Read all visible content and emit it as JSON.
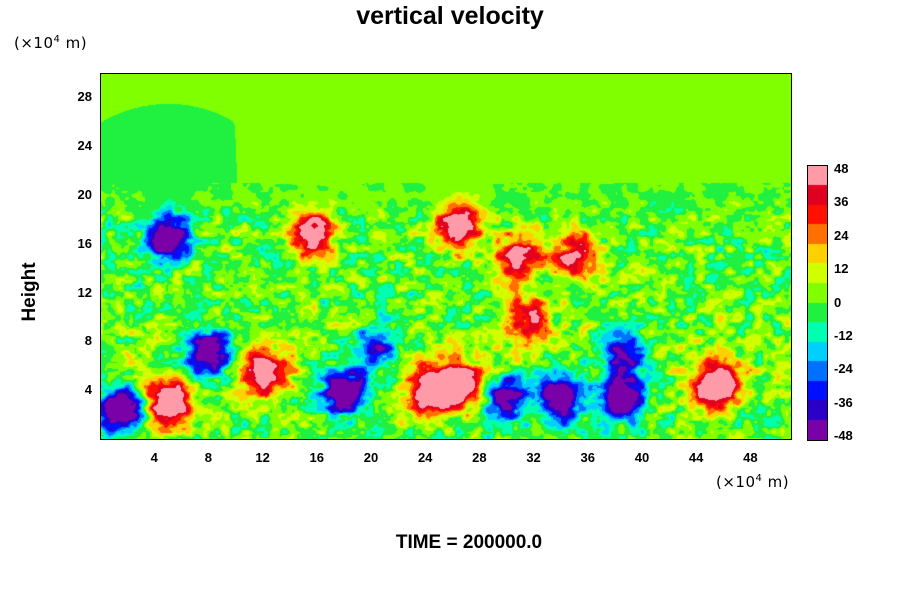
{
  "chart_data": {
    "type": "heatmap",
    "title": "vertical velocity",
    "ylabel": "Height",
    "x_unit": {
      "prefix": "(×10",
      "exp": "4",
      "suffix": " m)"
    },
    "y_unit": {
      "prefix": "(×10",
      "exp": "4",
      "suffix": " m)"
    },
    "x_ticks": [
      "4",
      "8",
      "12",
      "16",
      "20",
      "24",
      "28",
      "32",
      "36",
      "40",
      "44",
      "48"
    ],
    "y_ticks": [
      "4",
      "8",
      "12",
      "16",
      "20",
      "24",
      "28"
    ],
    "xlim": [
      0,
      51
    ],
    "ylim": [
      0,
      30
    ],
    "colorbar": {
      "ticks": [
        "48",
        "36",
        "24",
        "12",
        "0",
        "-12",
        "-24",
        "-36",
        "-48"
      ],
      "range": [
        -48,
        48
      ],
      "colors": [
        "#7a00a8",
        "#2a00c8",
        "#0010ff",
        "#0070ff",
        "#00d0ff",
        "#00ffb0",
        "#20f040",
        "#80ff00",
        "#d0ff00",
        "#ffd000",
        "#ff7000",
        "#ff1000",
        "#e00020",
        "#ff9aa8"
      ]
    },
    "features": [
      {
        "x": 1.5,
        "y": 2.5,
        "w": -48
      },
      {
        "x": 5.0,
        "y": 3.0,
        "w": 46
      },
      {
        "x": 8.0,
        "y": 7.0,
        "w": -44
      },
      {
        "x": 12.0,
        "y": 5.5,
        "w": 40
      },
      {
        "x": 18.0,
        "y": 4.0,
        "w": -48
      },
      {
        "x": 20.5,
        "y": 7.5,
        "w": -30
      },
      {
        "x": 24.5,
        "y": 4.0,
        "w": 48
      },
      {
        "x": 26.5,
        "y": 4.5,
        "w": 46
      },
      {
        "x": 30.0,
        "y": 3.5,
        "w": -38
      },
      {
        "x": 34.0,
        "y": 3.5,
        "w": -48
      },
      {
        "x": 38.5,
        "y": 3.5,
        "w": -48
      },
      {
        "x": 38.5,
        "y": 7.0,
        "w": -34
      },
      {
        "x": 45.5,
        "y": 4.5,
        "w": 48
      },
      {
        "x": 5.0,
        "y": 16.5,
        "w": -44
      },
      {
        "x": 15.5,
        "y": 17.0,
        "w": 40
      },
      {
        "x": 26.5,
        "y": 17.5,
        "w": 44
      },
      {
        "x": 31.0,
        "y": 15.0,
        "w": 36
      },
      {
        "x": 35.0,
        "y": 15.0,
        "w": 32
      },
      {
        "x": 31.5,
        "y": 10.0,
        "w": 30
      }
    ]
  },
  "footer": {
    "time_label": "TIME = 200000.0"
  }
}
